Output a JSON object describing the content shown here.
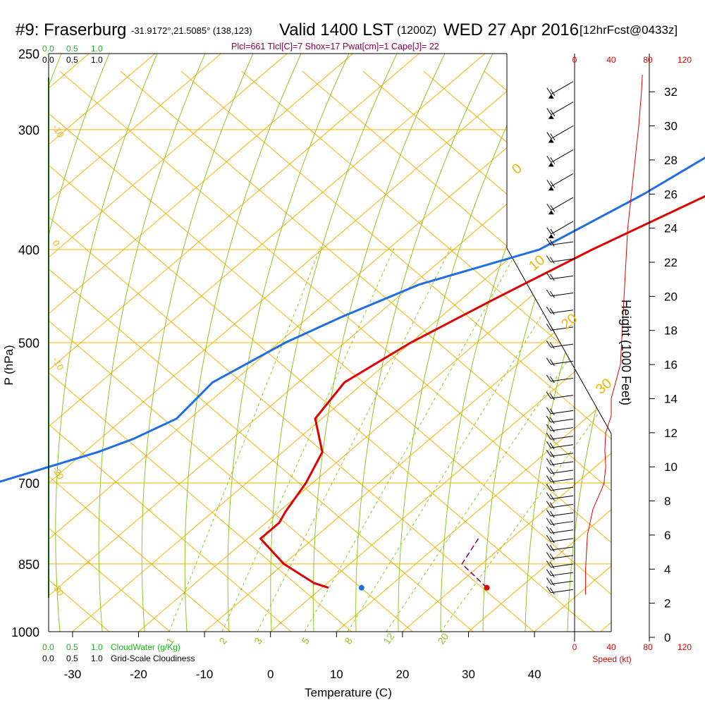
{
  "header": {
    "station": "#9: Fraserburg",
    "coords": "-31.9172°,21.5085° (138,123)",
    "valid": "Valid 1400 LST",
    "utc": "(1200Z)",
    "date": "WED 27 Apr 2016",
    "forecast": "[12hrFcst@0433z]",
    "indices": "Plcl=661 Tlcl[C]=7 Shox=17 Pwat[cm]=1 Cape[J]= 22"
  },
  "colors": {
    "isotherm": "#f0b400",
    "dry_adiabat": "#f0b400",
    "moist_adiabat": "#8cc81e",
    "mixing_ratio": "#8cc81e",
    "temperature": "#e00000",
    "dewpoint": "#1e6ee6",
    "parcel": "#800060",
    "indices": "#8b0050",
    "cloud_water": "#1eb41e",
    "speed": "#e00000"
  },
  "chart_data": [
    {
      "type": "line",
      "name": "skew-t",
      "xlabel": "Temperature (C)",
      "ylabel": "P (hPa)",
      "x_ticks": [
        -30,
        -20,
        -10,
        0,
        10,
        20,
        30,
        40
      ],
      "pressure_ticks": [
        250,
        300,
        400,
        500,
        700,
        850,
        1000
      ],
      "xlim": [
        -40,
        60
      ],
      "ylim": [
        1000,
        250
      ],
      "y_scale": "log",
      "isotherm_labels": [
        "-10",
        "0",
        "10",
        "20",
        "30"
      ],
      "left_isotherm_labels": [
        "-10",
        "0",
        "-10",
        "-20",
        "-30"
      ],
      "mixing_ratio_labels": [
        "1",
        "2",
        "3",
        "5",
        "8",
        "12",
        "20"
      ],
      "series": [
        {
          "key": "temperature",
          "points": [
            [
              2,
              265
            ],
            [
              -4,
              300
            ],
            [
              -11,
              350
            ],
            [
              -19,
              400
            ],
            [
              -25,
              450
            ],
            [
              -30,
              500
            ],
            [
              -33,
              550
            ],
            [
              -31,
              600
            ],
            [
              -24,
              650
            ],
            [
              -21,
              700
            ],
            [
              -19,
              750
            ],
            [
              -18,
              770
            ],
            [
              -18,
              800
            ],
            [
              -10,
              850
            ],
            [
              -2,
              890
            ],
            [
              1,
              900
            ]
          ]
        },
        {
          "key": "dewpoint",
          "points": [
            [
              -8,
              265
            ],
            [
              -13,
              285
            ],
            [
              -16,
              300
            ],
            [
              -21,
              350
            ],
            [
              -27,
              400
            ],
            [
              -39,
              435
            ],
            [
              -45,
              470
            ],
            [
              -49,
              500
            ],
            [
              -53,
              550
            ],
            [
              -52,
              600
            ],
            [
              -55,
              630
            ],
            [
              -58,
              650
            ],
            [
              -68,
              700
            ],
            [
              -72,
              760
            ],
            [
              -68,
              800
            ],
            [
              -67,
              850
            ],
            [
              -67,
              890
            ],
            [
              -66,
              900
            ]
          ]
        },
        {
          "key": "parcel",
          "points": [
            [
              25,
              900
            ],
            [
              17,
              850
            ],
            [
              15,
              800
            ]
          ]
        }
      ],
      "surface_markers": [
        {
          "key": "temperature",
          "t": 25,
          "p": 900
        },
        {
          "key": "dewpoint",
          "t": 6,
          "p": 900
        }
      ]
    },
    {
      "type": "line",
      "name": "wind-speed-profile",
      "xlabel": "Speed (kt)",
      "x_ticks": [
        0,
        40,
        80,
        120
      ],
      "xlim": [
        0,
        120
      ],
      "height_label": "Height (1000 Feet)",
      "height_ticks": [
        0,
        2,
        4,
        6,
        8,
        10,
        12,
        14,
        16,
        18,
        20,
        22,
        24,
        26,
        28,
        30,
        32
      ],
      "height_range_kft": [
        0,
        33
      ],
      "speed_points": [
        [
          12,
          2.5
        ],
        [
          12,
          4
        ],
        [
          14,
          6
        ],
        [
          20,
          7.5
        ],
        [
          32,
          9
        ],
        [
          34,
          10
        ],
        [
          33,
          11
        ],
        [
          34,
          12
        ],
        [
          40,
          13
        ],
        [
          40,
          14
        ],
        [
          45,
          15
        ],
        [
          50,
          16
        ],
        [
          52,
          18
        ],
        [
          54,
          20
        ],
        [
          56,
          22
        ],
        [
          58,
          24
        ],
        [
          62,
          26
        ],
        [
          66,
          28
        ],
        [
          70,
          30
        ],
        [
          73,
          32
        ],
        [
          74,
          33
        ]
      ],
      "barbs_kft": [
        2.8,
        3.3,
        3.8,
        4.3,
        4.8,
        5.3,
        5.8,
        6.3,
        6.8,
        7.3,
        7.8,
        8.3,
        8.8,
        9.3,
        9.8,
        10.3,
        10.8,
        11.3,
        11.8,
        12.3,
        12.8,
        13.3,
        14.2,
        15.2,
        16.2,
        17.2,
        18.2,
        19.2,
        20.2,
        21.2,
        22.2,
        23.2,
        24.4,
        25.8,
        27.2,
        28.6,
        30.0,
        31.4,
        32.6
      ]
    }
  ],
  "cloud_scale": {
    "water_label": "CloudWater (g/Kg)",
    "cover_label": "Grid-Scale Cloudiness",
    "water_ticks": [
      "0.0",
      "0.5",
      "1.0"
    ],
    "cover_ticks": [
      "0.0",
      "0.5",
      "1.0"
    ]
  }
}
